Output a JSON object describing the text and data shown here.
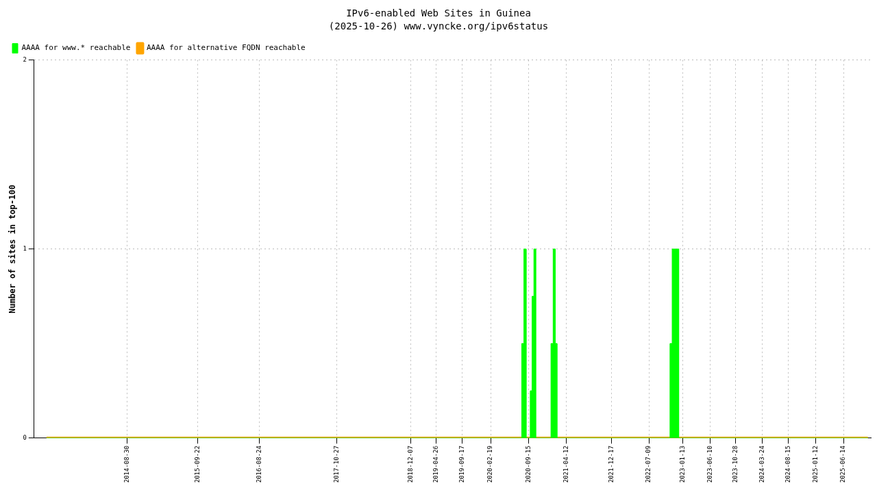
{
  "chart_data": {
    "type": "area",
    "title": "IPv6-enabled Web Sites in Guinea",
    "subtitle": "(2025-10-26) www.vyncke.org/ipv6status",
    "ylabel": "Number of sites in top-100",
    "xlim": [
      "2013-04-04",
      "2025-11-15"
    ],
    "xticks": [
      "2014-08-30",
      "2015-09-22",
      "2016-08-24",
      "2017-10-27",
      "2018-12-07",
      "2019-04-26",
      "2019-09-17",
      "2020-02-19",
      "2020-09-15",
      "2021-04-12",
      "2021-12-17",
      "2022-07-09",
      "2023-01-13",
      "2023-06-10",
      "2023-10-28",
      "2024-03-24",
      "2024-08-15",
      "2025-01-12",
      "2025-06-14"
    ],
    "ylim": [
      0,
      2
    ],
    "yticks": [
      0,
      1,
      2
    ],
    "grid": true,
    "legend": "top left",
    "series": [
      {
        "name": "AAAA for www.* reachable",
        "color": "#00ff00",
        "x": [
          "2013-06-11",
          "2020-08-08",
          "2020-08-08",
          "2020-08-20",
          "2020-08-20",
          "2020-09-01",
          "2020-09-01",
          "2020-09-24",
          "2020-09-24",
          "2020-10-04",
          "2020-10-04",
          "2020-10-14",
          "2020-10-14",
          "2020-10-24",
          "2020-10-24",
          "2021-01-16",
          "2021-01-16",
          "2021-01-28",
          "2021-01-28",
          "2021-02-08",
          "2021-02-08",
          "2021-02-18",
          "2021-02-18",
          "2022-11-02",
          "2022-11-02",
          "2022-11-14",
          "2022-11-14",
          "2022-12-20",
          "2022-12-20",
          "2025-10-26"
        ],
        "values": [
          0,
          0,
          0.5,
          0.5,
          1,
          1,
          0,
          0,
          0.25,
          0.25,
          0.75,
          0.75,
          1,
          1,
          0,
          0,
          0.5,
          0.5,
          1,
          1,
          0.5,
          0.5,
          0,
          0,
          0.5,
          0.5,
          1,
          1,
          0,
          0
        ]
      },
      {
        "name": "AAAA for alternative FQDN reachable",
        "color": "#ffa500",
        "type": "line",
        "x": [
          "2013-06-11",
          "2025-10-26"
        ],
        "values": [
          0,
          0
        ]
      }
    ]
  }
}
